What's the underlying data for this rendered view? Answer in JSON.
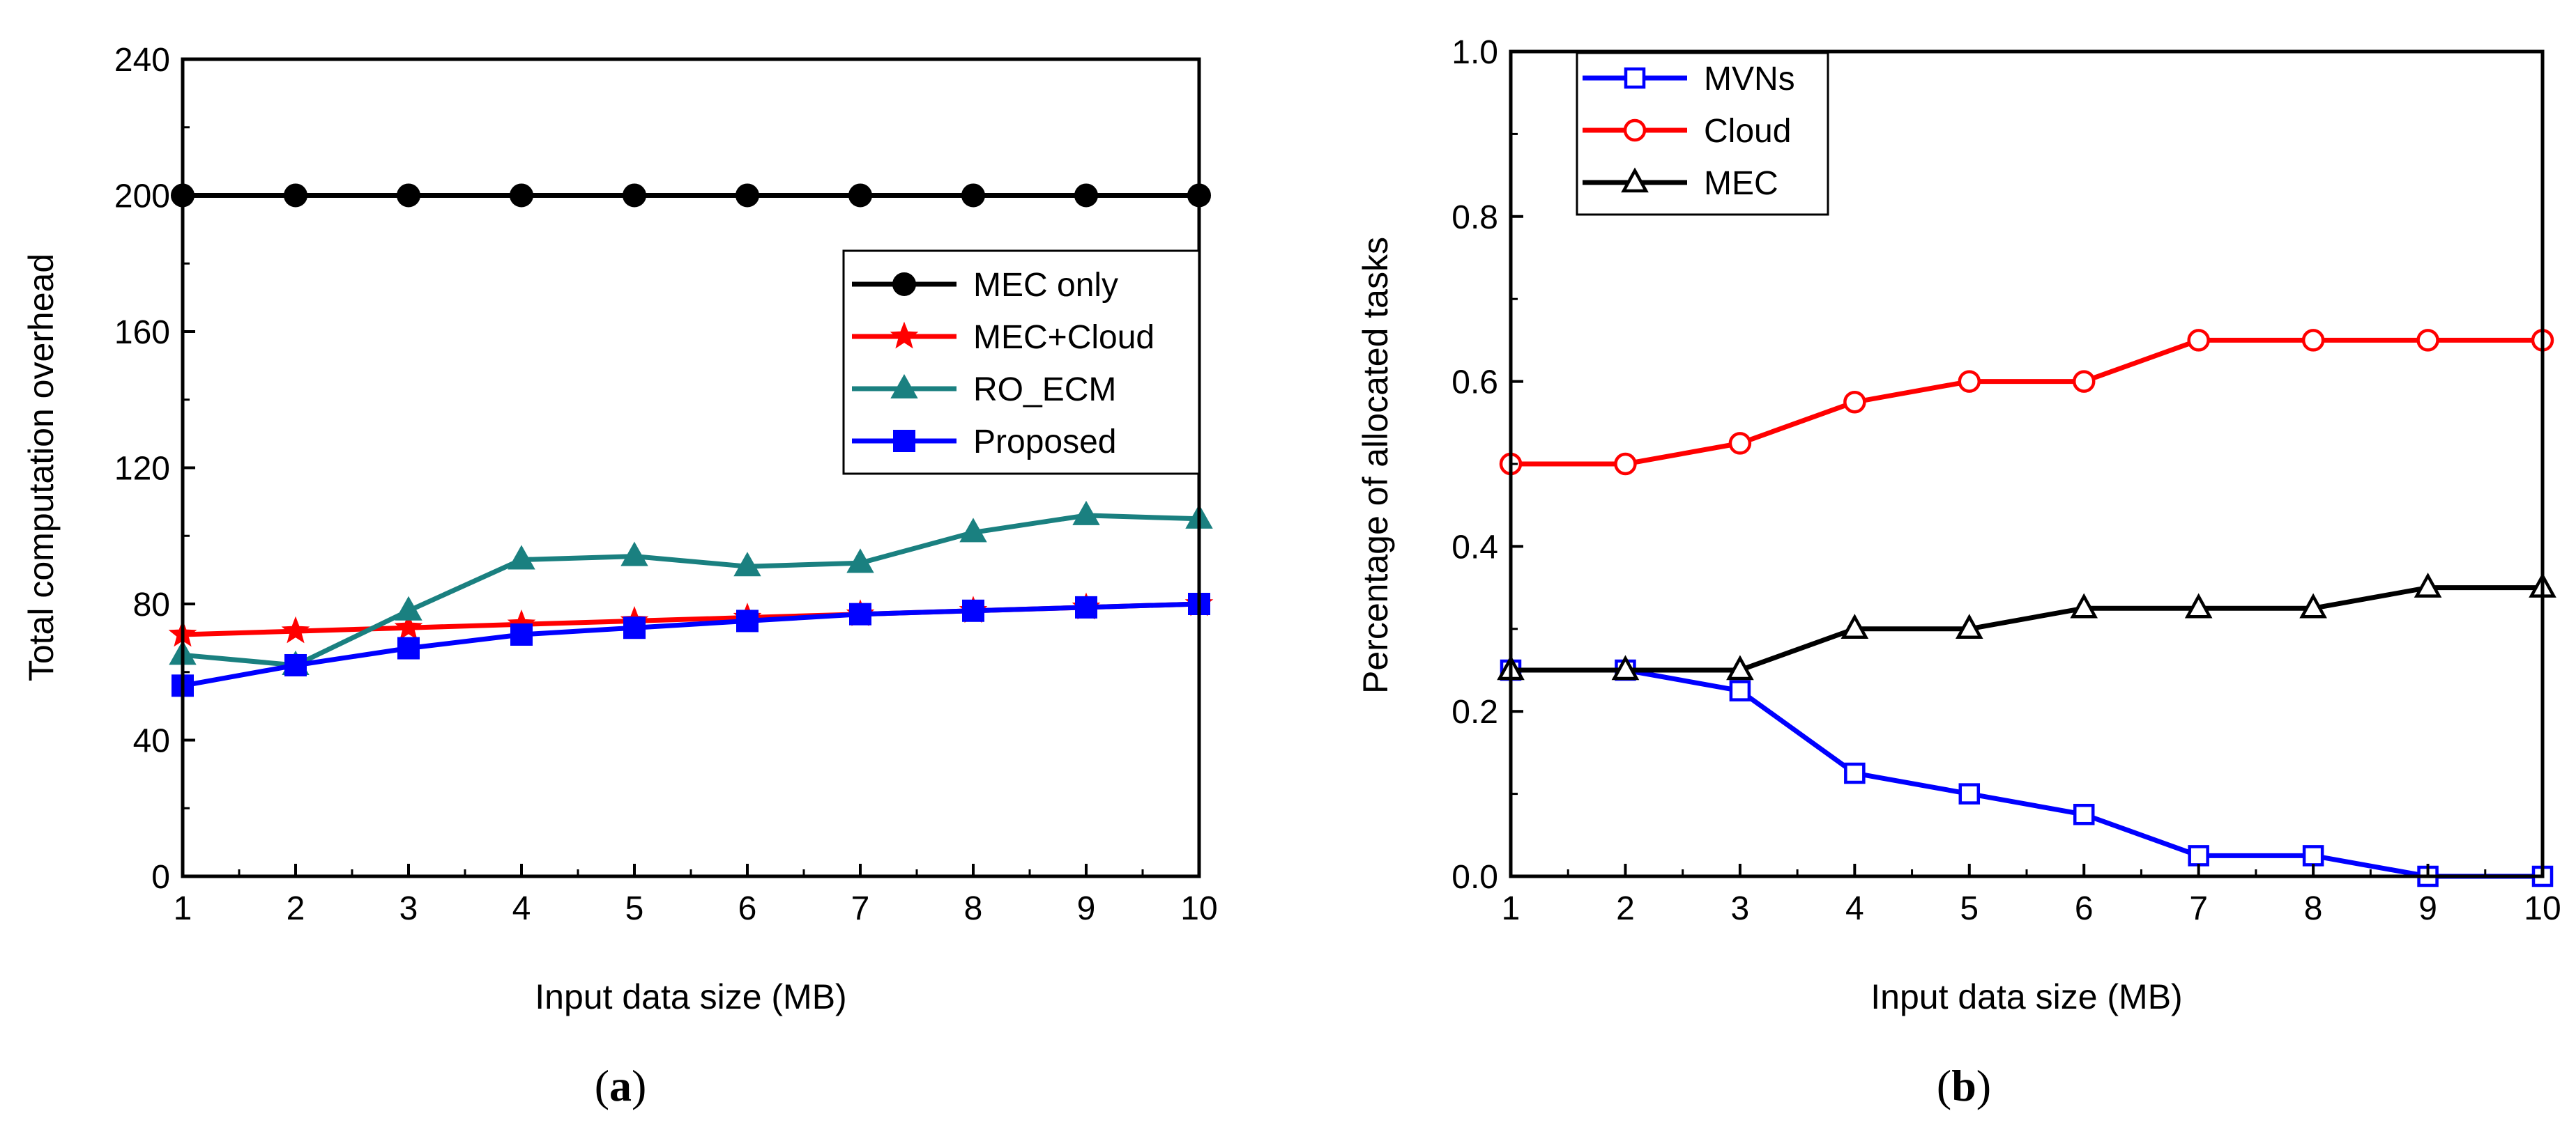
{
  "chart_data": [
    {
      "type": "line",
      "panel_label": "a",
      "xlabel": "Input data size (MB)",
      "ylabel": "Total computation overhead",
      "x": [
        1,
        2,
        3,
        4,
        5,
        6,
        7,
        8,
        9,
        10
      ],
      "xlim": [
        1,
        10
      ],
      "ylim": [
        0,
        240
      ],
      "xticks": [
        "1",
        "2",
        "3",
        "4",
        "5",
        "6",
        "7",
        "8",
        "9",
        "10"
      ],
      "yticks": [
        "0",
        "40",
        "80",
        "120",
        "160",
        "200",
        "240"
      ],
      "legend_position": "upper-right",
      "series": [
        {
          "name": "MEC only",
          "color": "#000000",
          "marker": "circle",
          "values": [
            200,
            200,
            200,
            200,
            200,
            200,
            200,
            200,
            200,
            200
          ]
        },
        {
          "name": "MEC+Cloud",
          "color": "#ff0000",
          "marker": "star",
          "values": [
            71,
            72,
            73,
            74,
            75,
            76,
            77,
            78,
            79,
            80
          ]
        },
        {
          "name": "RO_ECM",
          "color": "#1a8080",
          "marker": "triangle",
          "values": [
            65,
            62,
            78,
            93,
            94,
            91,
            92,
            101,
            106,
            105
          ]
        },
        {
          "name": "Proposed",
          "color": "#0000ff",
          "marker": "square",
          "values": [
            56,
            62,
            67,
            71,
            73,
            75,
            77,
            78,
            79,
            80
          ]
        }
      ]
    },
    {
      "type": "line",
      "panel_label": "b",
      "xlabel": "Input data size (MB)",
      "ylabel": "Percentage of allocated tasks",
      "x": [
        1,
        2,
        3,
        4,
        5,
        6,
        7,
        8,
        9,
        10
      ],
      "xlim": [
        1,
        10
      ],
      "ylim": [
        0,
        1.0
      ],
      "xticks": [
        "1",
        "2",
        "3",
        "4",
        "5",
        "6",
        "7",
        "8",
        "9",
        "10"
      ],
      "yticks": [
        "0.0",
        "0.2",
        "0.4",
        "0.6",
        "0.8",
        "1.0"
      ],
      "legend_position": "upper-left",
      "series": [
        {
          "name": "MVNs",
          "color": "#0000ff",
          "marker": "open-square",
          "values": [
            0.25,
            0.25,
            0.225,
            0.125,
            0.1,
            0.075,
            0.025,
            0.025,
            0.0,
            0.0
          ]
        },
        {
          "name": "Cloud",
          "color": "#ff0000",
          "marker": "open-circle",
          "values": [
            0.5,
            0.5,
            0.525,
            0.575,
            0.6,
            0.6,
            0.65,
            0.65,
            0.65,
            0.65
          ]
        },
        {
          "name": "MEC",
          "color": "#000000",
          "marker": "open-triangle",
          "values": [
            0.25,
            0.25,
            0.25,
            0.3,
            0.3,
            0.325,
            0.325,
            0.325,
            0.35,
            0.35
          ]
        }
      ]
    }
  ],
  "captions": {
    "a": "a",
    "b": "b"
  }
}
